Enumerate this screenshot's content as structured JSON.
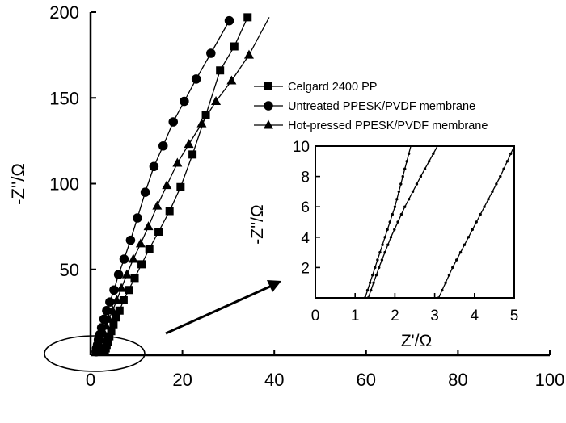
{
  "chart_data": [
    {
      "type": "scatter",
      "title": "",
      "xlabel": "",
      "ylabel": "-Z''/Ω",
      "xlim": [
        0,
        100
      ],
      "ylim": [
        0,
        200
      ],
      "xticks": [
        "0",
        "20",
        "40",
        "60",
        "80",
        "100"
      ],
      "yticks": [
        "50",
        "100",
        "150",
        "200"
      ],
      "grid": false,
      "legend": "top-right",
      "series": [
        {
          "name": "Celgard 2400 PP",
          "marker": "square",
          "x": [
            3.1,
            3.3,
            3.5,
            3.8,
            4.1,
            4.5,
            5.0,
            5.6,
            6.3,
            7.2,
            8.3,
            9.6,
            11.1,
            12.8,
            14.8,
            17.2,
            19.6,
            22.2,
            25.1,
            28.2,
            31.3,
            34.2
          ],
          "y": [
            2,
            4,
            6,
            8,
            11,
            14,
            18,
            22,
            26,
            32,
            38,
            45,
            53,
            62,
            72,
            84,
            98,
            117,
            140,
            166,
            180,
            197
          ]
        },
        {
          "name": "Untreated PPESK/PVDF membrane",
          "marker": "circle",
          "x": [
            1.2,
            1.3,
            1.5,
            1.7,
            2.0,
            2.4,
            2.9,
            3.5,
            4.2,
            5.1,
            6.1,
            7.3,
            8.7,
            10.2,
            11.9,
            13.8,
            15.8,
            18.0,
            20.4,
            23.0,
            26.2,
            30.2
          ],
          "y": [
            2,
            4,
            6,
            9,
            12,
            16,
            21,
            26,
            31,
            38,
            47,
            56,
            67,
            80,
            95,
            110,
            122,
            136,
            148,
            161,
            176,
            195
          ]
        },
        {
          "name": "Hot-pressed PPESK/PVDF membrane",
          "marker": "triangle",
          "x": [
            1.6,
            1.8,
            2.1,
            2.5,
            2.9,
            3.4,
            4.0,
            4.8,
            5.7,
            6.7,
            7.9,
            9.3,
            10.9,
            12.6,
            14.5,
            16.6,
            18.9,
            21.4,
            24.2,
            27.3,
            30.7,
            34.5
          ],
          "y": [
            2,
            4,
            6,
            9,
            13,
            17,
            21,
            26,
            32,
            39,
            47,
            56,
            65,
            75,
            87,
            99,
            112,
            123,
            135,
            148,
            160,
            175
          ]
        }
      ]
    },
    {
      "type": "scatter",
      "title": "",
      "xlabel": "Z'/Ω",
      "ylabel": "-Z''/Ω",
      "xlim": [
        0,
        5
      ],
      "ylim": [
        0,
        10
      ],
      "xticks": [
        "0",
        "1",
        "2",
        "3",
        "4",
        "5"
      ],
      "yticks": [
        "2",
        "4",
        "6",
        "8",
        "10"
      ],
      "grid": false,
      "series": [
        {
          "name": "",
          "x": [
            1.25,
            1.5,
            1.75,
            2.0,
            2.2,
            2.4
          ],
          "y": [
            0,
            2,
            4,
            6,
            8,
            10
          ]
        },
        {
          "name": "",
          "x": [
            1.33,
            1.6,
            1.9,
            2.25,
            2.65,
            3.07
          ],
          "y": [
            0,
            2,
            4,
            6,
            8,
            10
          ]
        },
        {
          "name": "",
          "x": [
            3.1,
            3.45,
            3.85,
            4.25,
            4.65,
            5.0
          ],
          "y": [
            0,
            2,
            4,
            6,
            8,
            10
          ]
        }
      ]
    }
  ]
}
